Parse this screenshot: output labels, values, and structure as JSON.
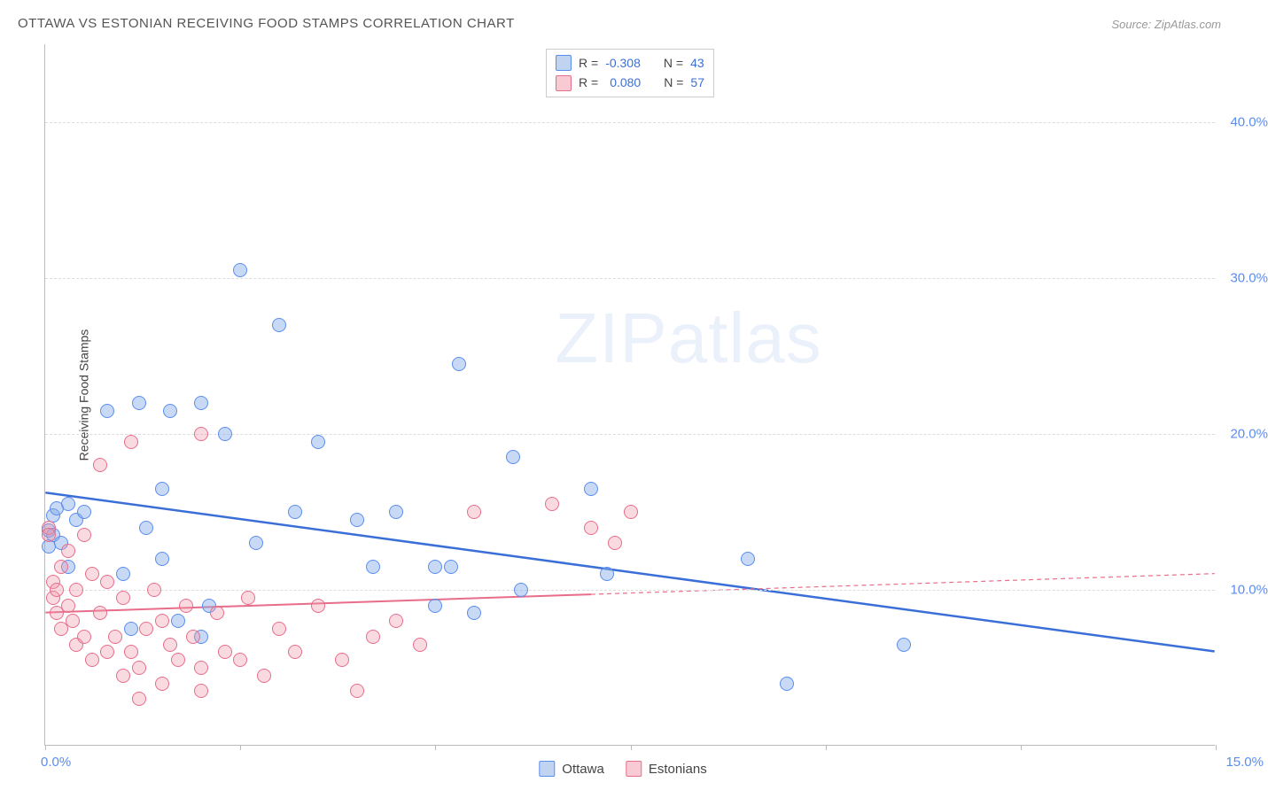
{
  "title": "OTTAWA VS ESTONIAN RECEIVING FOOD STAMPS CORRELATION CHART",
  "source": "Source: ZipAtlas.com",
  "watermark_zip": "ZIP",
  "watermark_atlas": "atlas",
  "y_axis_label": "Receiving Food Stamps",
  "chart": {
    "type": "scatter",
    "xlim": [
      0,
      15
    ],
    "ylim": [
      0,
      45
    ],
    "y_ticks": [
      10,
      20,
      30,
      40
    ],
    "y_tick_labels": [
      "10.0%",
      "20.0%",
      "30.0%",
      "40.0%"
    ],
    "x_ticks": [
      0,
      2.5,
      5,
      7.5,
      10,
      12.5,
      15
    ],
    "x_tick_label_left": "0.0%",
    "x_tick_label_right": "15.0%",
    "background_color": "#ffffff",
    "grid_color": "#dddddd",
    "axis_color": "#bbbbbb",
    "label_color_blue": "#5b8def",
    "series": [
      {
        "name": "Ottawa",
        "color_fill": "rgba(130,170,230,0.45)",
        "color_stroke": "#5b8def",
        "trend_color": "#3b6fd8",
        "trend_width": 2.5,
        "r": "-0.308",
        "n": "43",
        "trend": {
          "x1": 0,
          "y1": 16.2,
          "x2": 15,
          "y2": 6.0,
          "solid_until": 15
        },
        "points": [
          [
            0.05,
            13.8
          ],
          [
            0.05,
            12.8
          ],
          [
            0.1,
            13.5
          ],
          [
            0.1,
            14.8
          ],
          [
            0.15,
            15.2
          ],
          [
            0.2,
            13.0
          ],
          [
            0.3,
            15.5
          ],
          [
            0.4,
            14.5
          ],
          [
            0.5,
            15.0
          ],
          [
            0.8,
            21.5
          ],
          [
            1.0,
            11.0
          ],
          [
            1.1,
            7.5
          ],
          [
            1.2,
            22.0
          ],
          [
            1.3,
            14.0
          ],
          [
            1.5,
            16.5
          ],
          [
            1.6,
            21.5
          ],
          [
            1.7,
            8.0
          ],
          [
            2.0,
            22.0
          ],
          [
            2.0,
            7.0
          ],
          [
            2.1,
            9.0
          ],
          [
            2.3,
            20.0
          ],
          [
            2.5,
            30.5
          ],
          [
            2.7,
            13.0
          ],
          [
            3.0,
            27.0
          ],
          [
            3.2,
            15.0
          ],
          [
            3.5,
            19.5
          ],
          [
            4.0,
            14.5
          ],
          [
            4.2,
            11.5
          ],
          [
            4.5,
            15.0
          ],
          [
            5.0,
            11.5
          ],
          [
            5.0,
            9.0
          ],
          [
            5.2,
            11.5
          ],
          [
            5.3,
            24.5
          ],
          [
            5.5,
            8.5
          ],
          [
            6.0,
            18.5
          ],
          [
            6.1,
            10.0
          ],
          [
            7.0,
            16.5
          ],
          [
            7.2,
            11.0
          ],
          [
            9.0,
            12.0
          ],
          [
            9.5,
            4.0
          ],
          [
            11.0,
            6.5
          ],
          [
            1.5,
            12.0
          ],
          [
            0.3,
            11.5
          ]
        ]
      },
      {
        "name": "Estonians",
        "color_fill": "rgba(240,150,170,0.35)",
        "color_stroke": "#e76d8a",
        "trend_color": "#e76d8a",
        "trend_width": 2,
        "r": "0.080",
        "n": "57",
        "trend": {
          "x1": 0,
          "y1": 8.5,
          "x2": 15,
          "y2": 11.0,
          "solid_until": 7.0
        },
        "points": [
          [
            0.05,
            14.0
          ],
          [
            0.05,
            13.5
          ],
          [
            0.1,
            10.5
          ],
          [
            0.1,
            9.5
          ],
          [
            0.15,
            10.0
          ],
          [
            0.15,
            8.5
          ],
          [
            0.2,
            11.5
          ],
          [
            0.2,
            7.5
          ],
          [
            0.3,
            12.5
          ],
          [
            0.3,
            9.0
          ],
          [
            0.35,
            8.0
          ],
          [
            0.4,
            6.5
          ],
          [
            0.4,
            10.0
          ],
          [
            0.5,
            13.5
          ],
          [
            0.5,
            7.0
          ],
          [
            0.6,
            11.0
          ],
          [
            0.6,
            5.5
          ],
          [
            0.7,
            18.0
          ],
          [
            0.7,
            8.5
          ],
          [
            0.8,
            6.0
          ],
          [
            0.8,
            10.5
          ],
          [
            0.9,
            7.0
          ],
          [
            1.0,
            4.5
          ],
          [
            1.0,
            9.5
          ],
          [
            1.1,
            19.5
          ],
          [
            1.1,
            6.0
          ],
          [
            1.2,
            5.0
          ],
          [
            1.3,
            7.5
          ],
          [
            1.4,
            10.0
          ],
          [
            1.5,
            8.0
          ],
          [
            1.5,
            4.0
          ],
          [
            1.6,
            6.5
          ],
          [
            1.7,
            5.5
          ],
          [
            1.8,
            9.0
          ],
          [
            1.9,
            7.0
          ],
          [
            2.0,
            20.0
          ],
          [
            2.0,
            5.0
          ],
          [
            2.2,
            8.5
          ],
          [
            2.3,
            6.0
          ],
          [
            2.5,
            5.5
          ],
          [
            2.6,
            9.5
          ],
          [
            2.8,
            4.5
          ],
          [
            3.0,
            7.5
          ],
          [
            3.2,
            6.0
          ],
          [
            3.5,
            9.0
          ],
          [
            3.8,
            5.5
          ],
          [
            4.0,
            3.5
          ],
          [
            4.2,
            7.0
          ],
          [
            4.5,
            8.0
          ],
          [
            4.8,
            6.5
          ],
          [
            5.5,
            15.0
          ],
          [
            6.5,
            15.5
          ],
          [
            7.0,
            14.0
          ],
          [
            7.3,
            13.0
          ],
          [
            7.5,
            15.0
          ],
          [
            2.0,
            3.5
          ],
          [
            1.2,
            3.0
          ]
        ]
      }
    ]
  },
  "legend_top": {
    "r_label": "R =",
    "n_label": "N ="
  },
  "legend_bottom": {
    "items": [
      "Ottawa",
      "Estonians"
    ]
  }
}
